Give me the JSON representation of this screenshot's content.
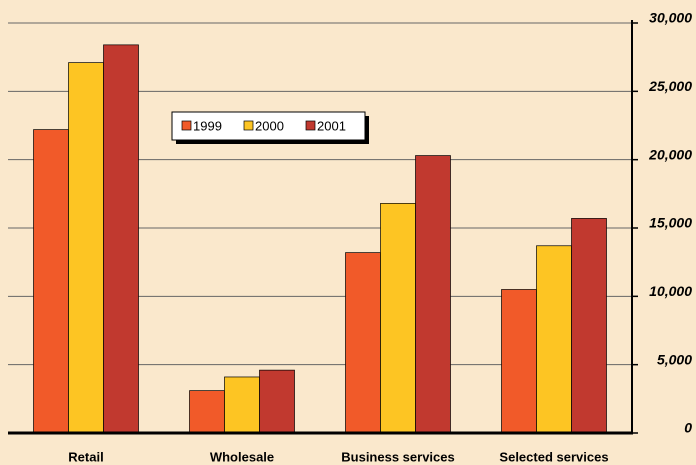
{
  "chart_data": {
    "type": "bar",
    "categories": [
      "Retail",
      "Wholesale",
      "Business services",
      "Selected services"
    ],
    "series": [
      {
        "name": "1999",
        "color": "#f15a29",
        "values": [
          22200,
          3100,
          13200,
          10500
        ]
      },
      {
        "name": "2000",
        "color": "#fdc523",
        "values": [
          27100,
          4100,
          16800,
          13700
        ]
      },
      {
        "name": "2001",
        "color": "#c1392f",
        "values": [
          28400,
          4600,
          20300,
          15700
        ]
      }
    ],
    "ylim": [
      0,
      30000
    ],
    "yticks": [
      0,
      {
        "value": 5000,
        "label": "5,000"
      },
      {
        "value": 10000,
        "label": "10,000"
      },
      {
        "value": 15000,
        "label": "15,000"
      },
      {
        "value": 20000,
        "label": "20,000"
      },
      {
        "value": 25000,
        "label": "25,000"
      },
      {
        "value": 30000,
        "label": "30,000"
      }
    ],
    "grid": true
  }
}
